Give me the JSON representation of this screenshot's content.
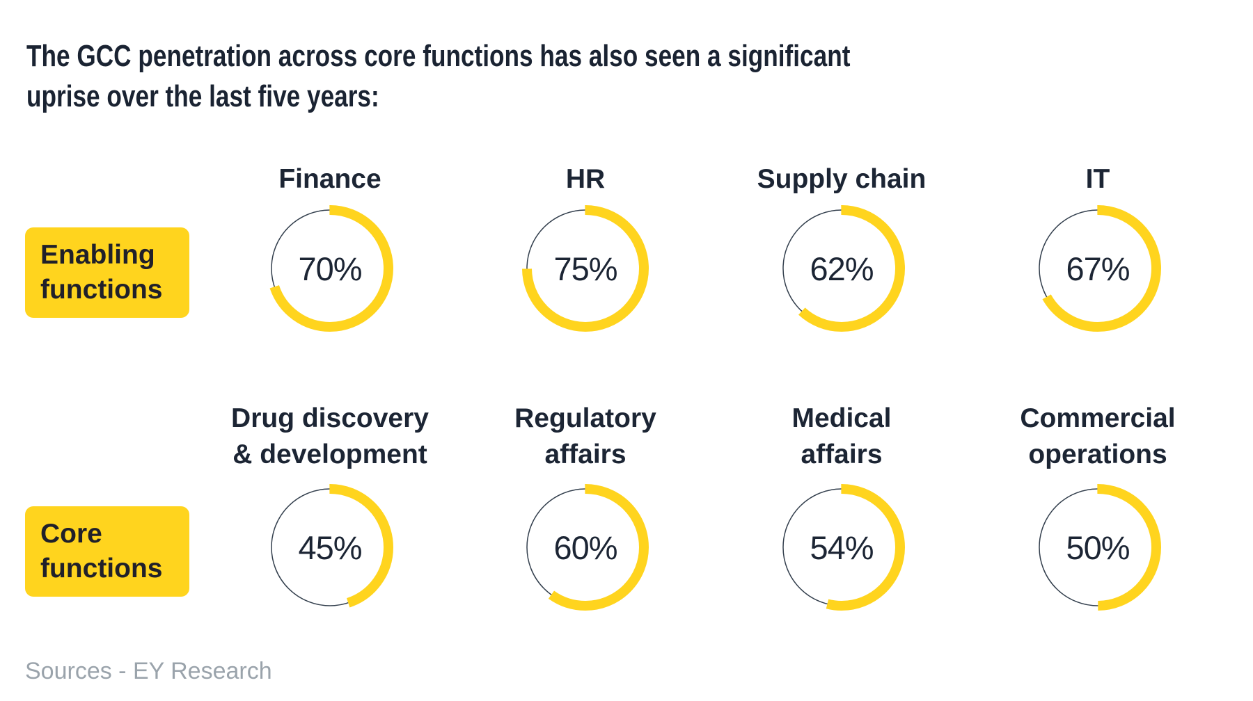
{
  "title": {
    "lines": [
      "The GCC penetration across core functions has also seen a significant",
      "uprise over the last five years:"
    ],
    "full_text": "The GCC penetration across core functions has also seen a significant uprise over the last five years:"
  },
  "sources": {
    "label": "Sources - EY Research"
  },
  "colors": {
    "arc_yellow": "#FFD41E",
    "group_box_yellow": "#FFD41E",
    "track_outline": "#333F4D",
    "title_navy": "#1A2332",
    "text_dark": "#20202A",
    "sources_gray": "#9AA3AB",
    "background": "#FFFFFF"
  },
  "chart_data": {
    "type": "pie",
    "subtype": "donut-progress-grid",
    "unit": "%",
    "value_range": [
      0,
      100
    ],
    "arc_start": "top",
    "arc_direction": "clockwise",
    "rows": [
      {
        "group": "Enabling functions",
        "group_lines": [
          "Enabling",
          "functions"
        ],
        "items": [
          {
            "label": "Finance",
            "label_lines": [
              "Finance"
            ],
            "value": 70,
            "value_label": "70%"
          },
          {
            "label": "HR",
            "label_lines": [
              "HR"
            ],
            "value": 75,
            "value_label": "75%"
          },
          {
            "label": "Supply chain",
            "label_lines": [
              "Supply chain"
            ],
            "value": 62,
            "value_label": "62%"
          },
          {
            "label": "IT",
            "label_lines": [
              "IT"
            ],
            "value": 67,
            "value_label": "67%"
          }
        ]
      },
      {
        "group": "Core functions",
        "group_lines": [
          "Core",
          "functions"
        ],
        "items": [
          {
            "label": "Drug discovery & development",
            "label_lines": [
              "Drug discovery",
              "& development"
            ],
            "value": 45,
            "value_label": "45%"
          },
          {
            "label": "Regulatory affairs",
            "label_lines": [
              "Regulatory",
              "affairs"
            ],
            "value": 60,
            "value_label": "60%"
          },
          {
            "label": "Medical affairs",
            "label_lines": [
              "Medical",
              "affairs"
            ],
            "value": 54,
            "value_label": "54%"
          },
          {
            "label": "Commercial operations",
            "label_lines": [
              "Commercial",
              "operations"
            ],
            "value": 50,
            "value_label": "50%"
          }
        ]
      }
    ]
  }
}
